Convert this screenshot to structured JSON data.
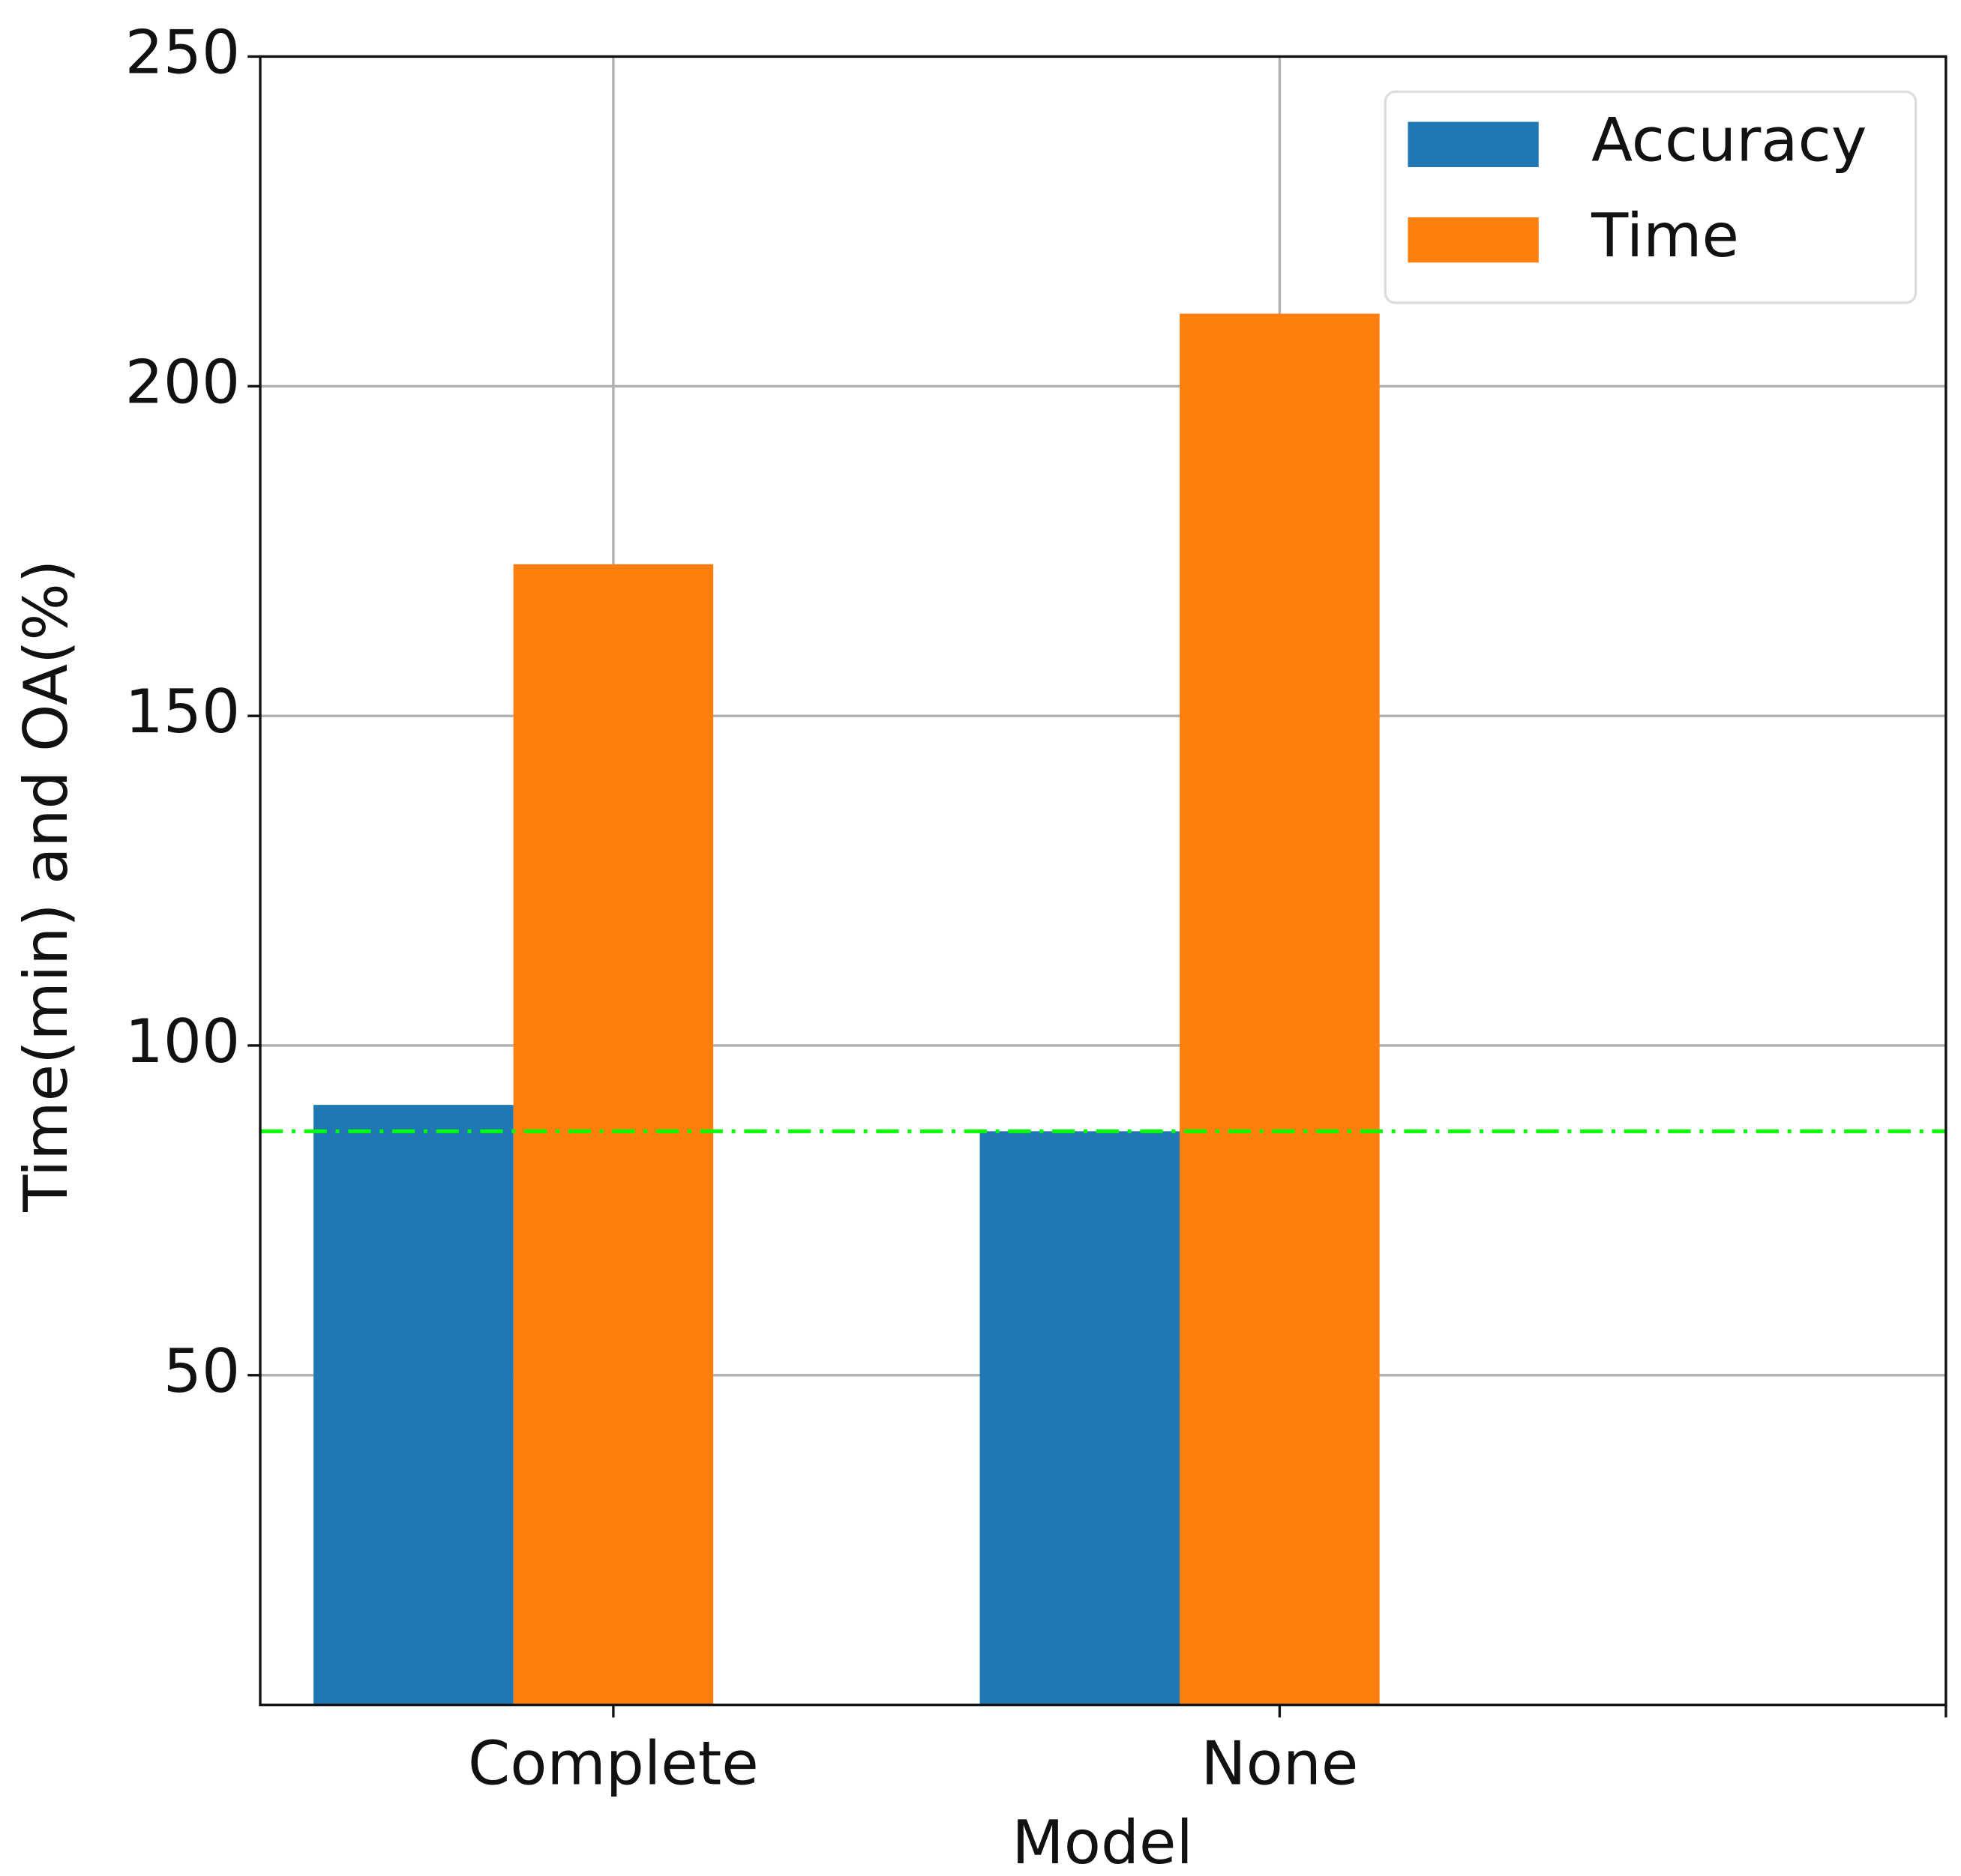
{
  "chart_data": {
    "type": "bar",
    "x_label": "Model",
    "y_label": "Time(min) and OA(%)",
    "categories": [
      "Complete",
      "None",
      null
    ],
    "series": [
      {
        "name": "Accuracy",
        "color": "#1f77b4",
        "values": [
          91,
          87,
          null
        ]
      },
      {
        "name": "Time",
        "color": "#ff7f0e",
        "values": [
          173,
          211,
          null
        ]
      }
    ],
    "xlim": [
      -0.53,
      2
    ],
    "ylim": [
      0,
      250
    ],
    "yticks": [
      50,
      100,
      150,
      200,
      250
    ],
    "grid": true,
    "legend": "upper right",
    "hline": {
      "value": 87,
      "color": "#00ff00",
      "style": "dashdot"
    }
  }
}
